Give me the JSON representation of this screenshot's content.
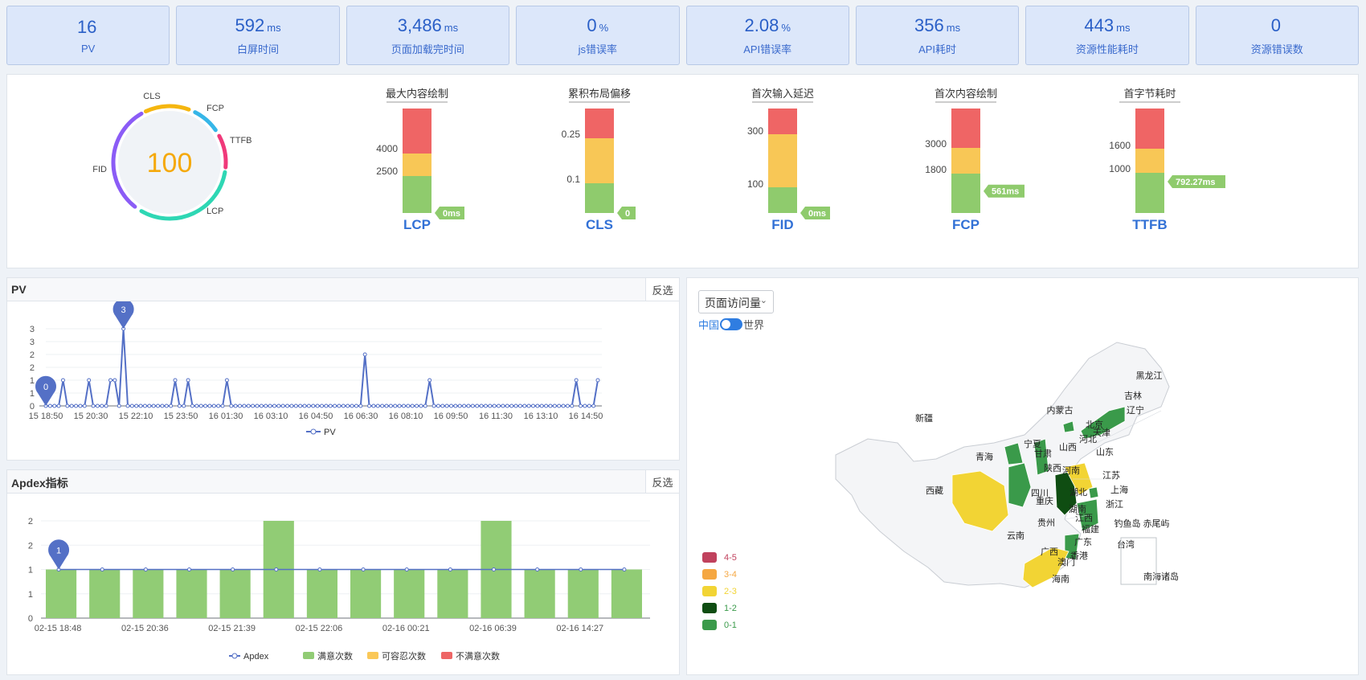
{
  "kpis": [
    {
      "value": "16",
      "unit": "",
      "label": "PV"
    },
    {
      "value": "592",
      "unit": "ms",
      "label": "白屏时间"
    },
    {
      "value": "3,486",
      "unit": "ms",
      "label": "页面加载完时间"
    },
    {
      "value": "0",
      "unit": "%",
      "label": "js错误率"
    },
    {
      "value": "2.08",
      "unit": "%",
      "label": "API错误率"
    },
    {
      "value": "356",
      "unit": "ms",
      "label": "API耗时"
    },
    {
      "value": "443",
      "unit": "ms",
      "label": "资源性能耗时"
    },
    {
      "value": "0",
      "unit": "",
      "label": "资源错误数"
    }
  ],
  "score": {
    "value": "100",
    "labels": {
      "cls": "CLS",
      "fcp": "FCP",
      "ttfb": "TTFB",
      "fid": "FID",
      "lcp": "LCP"
    },
    "colors": {
      "cls": "#f5b60f",
      "fcp": "#36b6e8",
      "ttfb": "#f0397a",
      "fid": "#8b5cf6",
      "lcp": "#2ed7b4",
      "score": "#f5a90c"
    }
  },
  "gauge_colors": {
    "poor": "#ef6565",
    "improve": "#f8c756",
    "good": "#8fcb6d"
  },
  "gauges": [
    {
      "title": "最大内容绘制",
      "metric": "LCP",
      "ticks": [
        "4000",
        "2500"
      ],
      "value": "0ms",
      "fraction": 0.0
    },
    {
      "title": "累积布局偏移",
      "metric": "CLS",
      "ticks": [
        "0.25",
        "0.1"
      ],
      "value": "0",
      "fraction": 0.0
    },
    {
      "title": "首次输入延迟",
      "metric": "FID",
      "ticks": [
        "300",
        "100"
      ],
      "value": "0ms",
      "fraction": 0.0
    },
    {
      "title": "首次内容绘制",
      "metric": "FCP",
      "ticks": [
        "3000",
        "1800"
      ],
      "value": "561ms",
      "fraction": 0.21
    },
    {
      "title": "首字节耗时",
      "metric": "TTFB",
      "ticks": [
        "1600",
        "1000"
      ],
      "value": "792.27ms",
      "fraction": 0.3
    }
  ],
  "pv_panel": {
    "title": "PV",
    "invert": "反选"
  },
  "apdex_panel": {
    "title": "Apdex指标",
    "invert": "反选"
  },
  "pv_chart_data": {
    "type": "line",
    "series_name": "PV",
    "color": "#5470c6",
    "y_tick_labels": [
      "0",
      "1",
      "1",
      "2",
      "2",
      "3",
      "3"
    ],
    "ylim": [
      0,
      3
    ],
    "x_tick_labels": [
      "15 18:50",
      "15 20:30",
      "15 22:10",
      "15 23:50",
      "16 01:30",
      "16 03:10",
      "16 04:50",
      "16 06:30",
      "16 08:10",
      "16 09:50",
      "16 11:30",
      "16 13:10",
      "16 14:50"
    ],
    "values": [
      0,
      0,
      0,
      0,
      1,
      0,
      0,
      0,
      0,
      0,
      1,
      0,
      0,
      0,
      0,
      1,
      1,
      0,
      3,
      0,
      0,
      0,
      0,
      0,
      0,
      0,
      0,
      0,
      0,
      0,
      1,
      0,
      0,
      1,
      0,
      0,
      0,
      0,
      0,
      0,
      0,
      0,
      1,
      0,
      0,
      0,
      0,
      0,
      0,
      0,
      0,
      0,
      0,
      0,
      0,
      0,
      0,
      0,
      0,
      0,
      0,
      0,
      0,
      0,
      0,
      0,
      0,
      0,
      0,
      0,
      0,
      0,
      0,
      0,
      2,
      0,
      0,
      0,
      0,
      0,
      0,
      0,
      0,
      0,
      0,
      0,
      0,
      0,
      0,
      1,
      0,
      0,
      0,
      0,
      0,
      0,
      0,
      0,
      0,
      0,
      0,
      0,
      0,
      0,
      0,
      0,
      0,
      0,
      0,
      0,
      0,
      0,
      0,
      0,
      0,
      0,
      0,
      0,
      0,
      0,
      0,
      0,
      0,
      1,
      0,
      0,
      0,
      0,
      1
    ],
    "markers": [
      {
        "label": "0"
      },
      {
        "label": "3"
      }
    ]
  },
  "apdex_chart_data": {
    "type": "bar",
    "categories": [
      "02-15 18:48",
      "",
      "02-15 20:36",
      "",
      "02-15 21:39",
      "",
      "02-15 22:06",
      "",
      "02-16 00:21",
      "",
      "02-16 06:39",
      "",
      "02-16 14:27",
      ""
    ],
    "y_tick_labels": [
      "0",
      "1",
      "1",
      "2",
      "2"
    ],
    "ylim": [
      0,
      2
    ],
    "series": [
      {
        "name": "Apdex",
        "kind": "line",
        "color": "#5470c6",
        "values": [
          1,
          1,
          1,
          1,
          1,
          1,
          1,
          1,
          1,
          1,
          1,
          1,
          1,
          1
        ]
      },
      {
        "name": "满意次数",
        "kind": "bar",
        "color": "#91cc75",
        "values": [
          1,
          1,
          1,
          1,
          1,
          2,
          1,
          1,
          1,
          1,
          2,
          1,
          1,
          1
        ]
      },
      {
        "name": "可容忍次数",
        "kind": "bar",
        "color": "#fac858",
        "values": [
          0,
          0,
          0,
          0,
          0,
          0,
          0,
          0,
          0,
          0,
          0,
          0,
          0,
          0
        ]
      },
      {
        "name": "不满意次数",
        "kind": "bar",
        "color": "#ee6666",
        "values": [
          0,
          0,
          0,
          0,
          0,
          0,
          0,
          0,
          0,
          0,
          0,
          0,
          0,
          0
        ]
      }
    ],
    "marker": {
      "label": "1"
    }
  },
  "map_panel": {
    "select_value": "页面访问量",
    "toggle_left": "中国",
    "toggle_right": "世界",
    "legend": [
      {
        "label": "4-5",
        "color": "#c0415d"
      },
      {
        "label": "3-4",
        "color": "#f5a742"
      },
      {
        "label": "2-3",
        "color": "#f2d434"
      },
      {
        "label": "1-2",
        "color": "#0f4d12"
      },
      {
        "label": "0-1",
        "color": "#3a9a4a"
      }
    ],
    "provinces": [
      "黑龙江",
      "吉林",
      "辽宁",
      "内蒙古",
      "新疆",
      "北京",
      "天津",
      "河北",
      "宁夏",
      "山西",
      "甘肃",
      "青海",
      "山东",
      "陕西",
      "河南",
      "江苏",
      "西藏",
      "四川",
      "湖北",
      "上海",
      "浙江",
      "重庆",
      "湖南",
      "江西",
      "贵州",
      "福建",
      "钓鱼岛",
      "赤尾屿",
      "云南",
      "广东",
      "台湾",
      "广西",
      "香港",
      "澳门",
      "海南",
      "南海诸岛"
    ]
  }
}
